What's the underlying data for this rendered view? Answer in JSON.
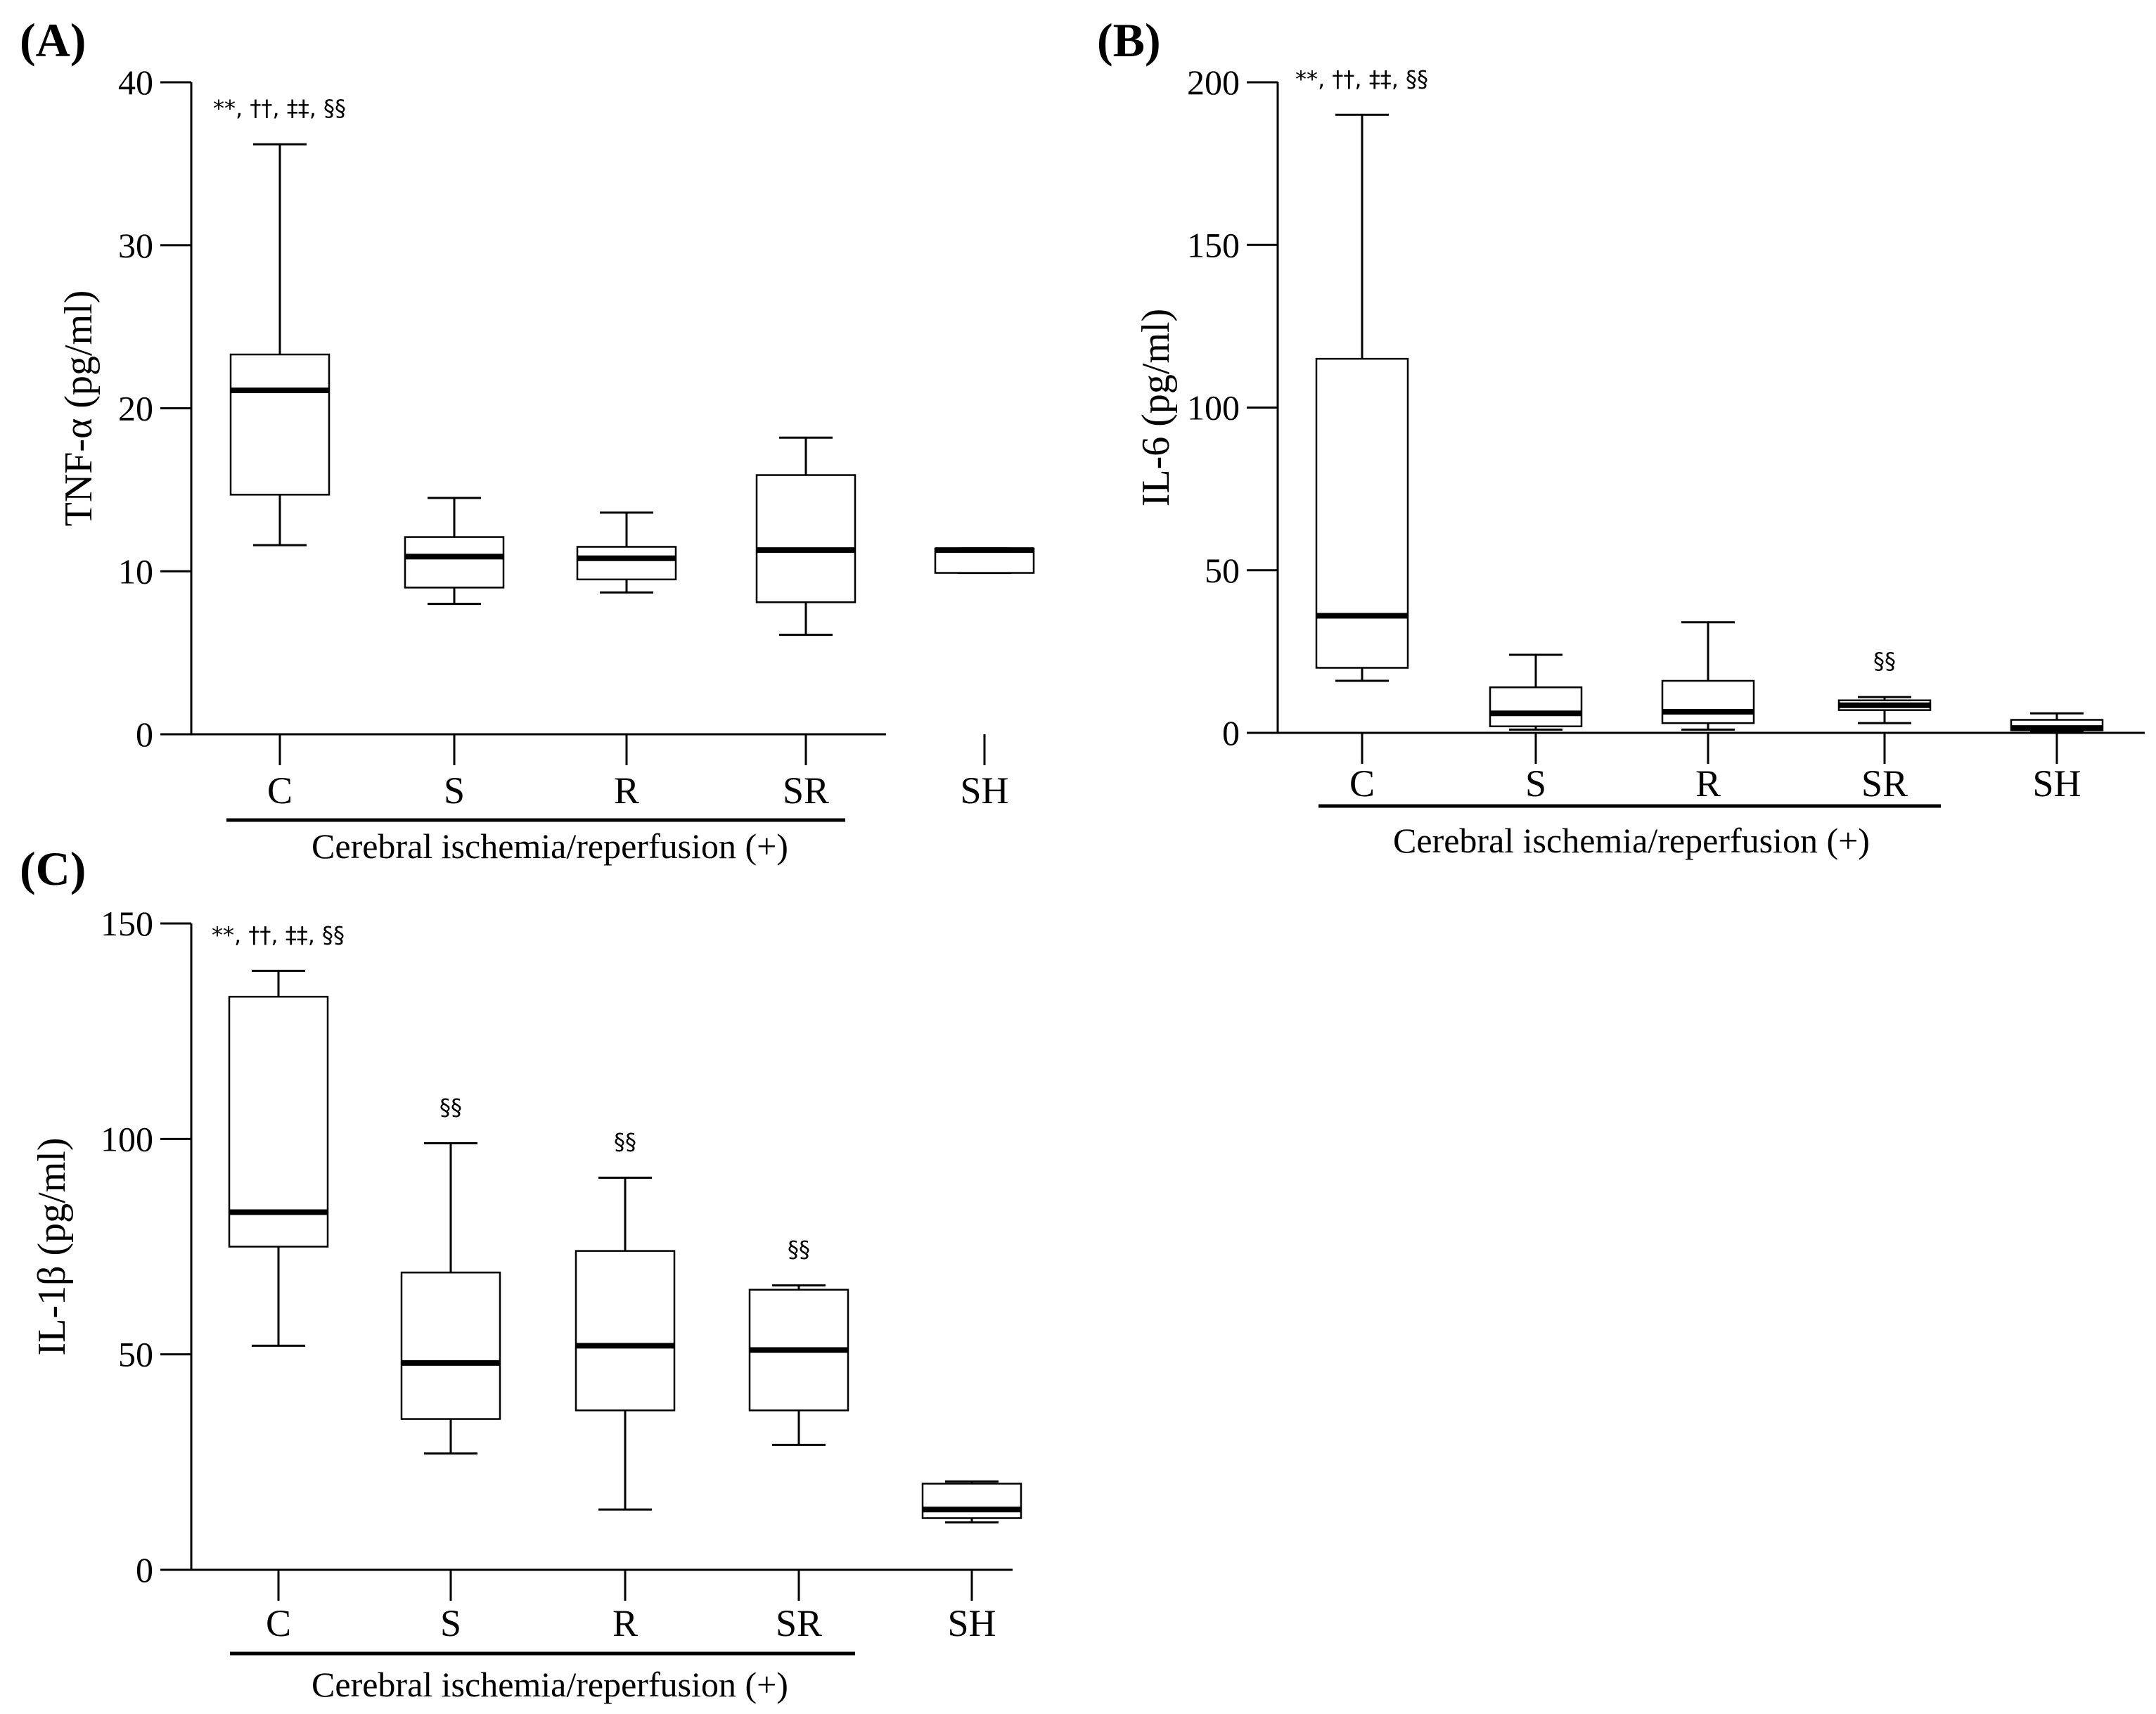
{
  "chart_data": [
    {
      "panel": "(A)",
      "type": "box",
      "ylabel": "TNF-α (pg/ml)",
      "ylim": [
        0,
        40
      ],
      "yticks": [
        0,
        10,
        20,
        30,
        40
      ],
      "categories": [
        "C",
        "S",
        "R",
        "SR",
        "SH"
      ],
      "group_label": "Cerebral ischemia/reperfusion (+)",
      "group_span": [
        "C",
        "SR"
      ],
      "boxes": [
        {
          "category": "C",
          "min": 11.6,
          "q1": 14.7,
          "median": 21.1,
          "q3": 23.3,
          "max": 36.2,
          "annotation": "**, ††, ‡‡, §§"
        },
        {
          "category": "S",
          "min": 8.0,
          "q1": 9.0,
          "median": 10.9,
          "q3": 12.1,
          "max": 14.5,
          "annotation": ""
        },
        {
          "category": "R",
          "min": 8.7,
          "q1": 9.5,
          "median": 10.8,
          "q3": 11.5,
          "max": 13.6,
          "annotation": ""
        },
        {
          "category": "SR",
          "min": 6.1,
          "q1": 8.1,
          "median": 11.3,
          "q3": 15.9,
          "max": 18.2,
          "annotation": ""
        },
        {
          "category": "SH",
          "min": 9.9,
          "q1": 9.9,
          "median": 11.3,
          "q3": 11.4,
          "max": 11.4,
          "annotation": ""
        }
      ]
    },
    {
      "panel": "(B)",
      "type": "box",
      "ylabel": "IL-6 (pg/ml)",
      "ylim": [
        0,
        200
      ],
      "yticks": [
        0,
        50,
        100,
        150,
        200
      ],
      "categories": [
        "C",
        "S",
        "R",
        "SR",
        "SH"
      ],
      "group_label": "Cerebral ischemia/reperfusion (+)",
      "group_span": [
        "C",
        "SR"
      ],
      "boxes": [
        {
          "category": "C",
          "min": 16.0,
          "q1": 20.0,
          "median": 36.0,
          "q3": 115.0,
          "max": 190.0,
          "annotation": "**, ††, ‡‡, §§"
        },
        {
          "category": "S",
          "min": 1.0,
          "q1": 2.0,
          "median": 6.0,
          "q3": 14.0,
          "max": 24.0,
          "annotation": ""
        },
        {
          "category": "R",
          "min": 1.0,
          "q1": 3.0,
          "median": 6.5,
          "q3": 16.0,
          "max": 34.0,
          "annotation": ""
        },
        {
          "category": "SR",
          "min": 3.0,
          "q1": 7.0,
          "median": 8.5,
          "q3": 10.0,
          "max": 11.0,
          "annotation": "§§"
        },
        {
          "category": "SH",
          "min": 0.5,
          "q1": 0.8,
          "median": 1.5,
          "q3": 4.0,
          "max": 6.0,
          "annotation": ""
        }
      ]
    },
    {
      "panel": "(C)",
      "type": "box",
      "ylabel": "IL-1β (pg/ml)",
      "ylim": [
        0,
        150
      ],
      "yticks": [
        0,
        50,
        100,
        150
      ],
      "categories": [
        "C",
        "S",
        "R",
        "SR",
        "SH"
      ],
      "group_label": "Cerebral ischemia/reperfusion (+)",
      "group_span": [
        "C",
        "SR"
      ],
      "boxes": [
        {
          "category": "C",
          "min": 52.0,
          "q1": 75.0,
          "median": 83.0,
          "q3": 133.0,
          "max": 139.0,
          "annotation": "**, ††, ‡‡, §§"
        },
        {
          "category": "S",
          "min": 27.0,
          "q1": 35.0,
          "median": 48.0,
          "q3": 69.0,
          "max": 99.0,
          "annotation": "§§"
        },
        {
          "category": "R",
          "min": 14.0,
          "q1": 37.0,
          "median": 52.0,
          "q3": 74.0,
          "max": 91.0,
          "annotation": "§§"
        },
        {
          "category": "SR",
          "min": 29.0,
          "q1": 37.0,
          "median": 51.0,
          "q3": 65.0,
          "max": 66.0,
          "annotation": "§§"
        },
        {
          "category": "SH",
          "min": 11.0,
          "q1": 12.0,
          "median": 14.0,
          "q3": 20.0,
          "max": 20.5,
          "annotation": ""
        }
      ]
    }
  ]
}
